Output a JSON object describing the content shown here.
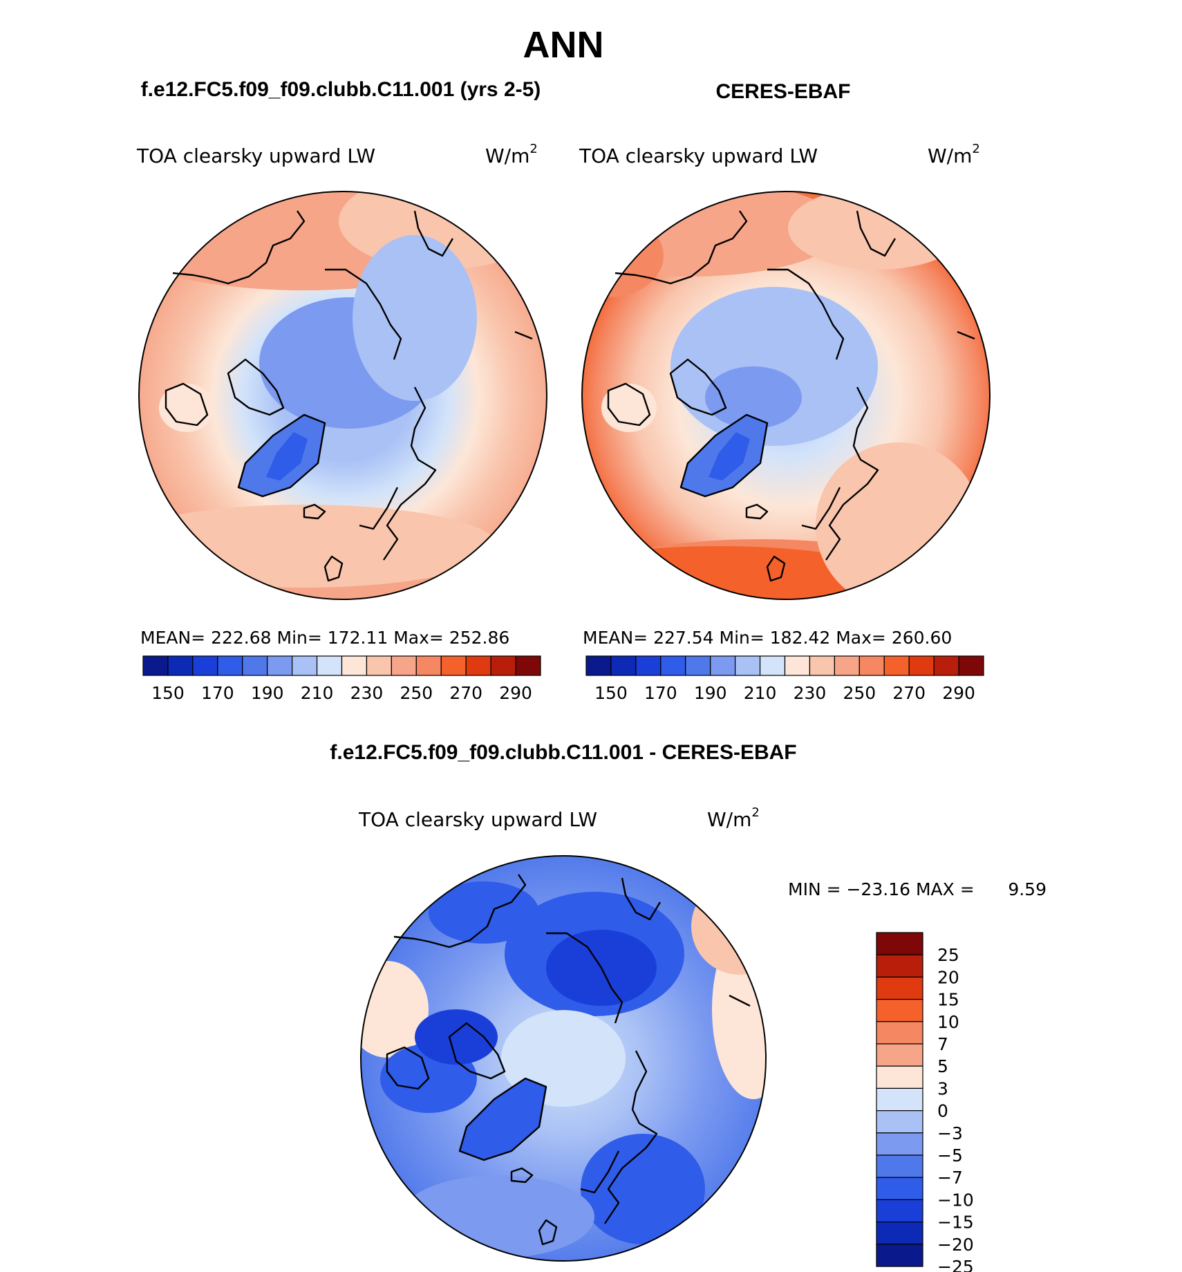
{
  "title": "ANN",
  "panels": [
    {
      "name": "model",
      "case_title": "f.e12.FC5.f09_f09.clubb.C11.001 (yrs 2-5)",
      "variable": "TOA clearsky upward LW",
      "units": "W/m",
      "units_sup": "2",
      "stats": {
        "mean": "222.68",
        "min": "172.11",
        "max": "252.86"
      },
      "stats_label_mean": "MEAN=",
      "stats_label_min": "Min=",
      "stats_label_max": "Max=",
      "palette": [
        "#0a1a8c",
        "#0c2ab5",
        "#1a3fd9",
        "#2f5ce8",
        "#4f78ea",
        "#7b9af0",
        "#a9c1f5",
        "#d2e3fa",
        "#fde6d7",
        "#f9c5ad",
        "#f6a588",
        "#f58762",
        "#f4612b",
        "#e03a10",
        "#b81e0a",
        "#7e0808"
      ],
      "colorbar_labels": [
        "150",
        "170",
        "190",
        "210",
        "230",
        "250",
        "270",
        "290"
      ]
    },
    {
      "name": "obs",
      "case_title": "CERES-EBAF",
      "variable": "TOA clearsky upward LW",
      "units": "W/m",
      "units_sup": "2",
      "stats": {
        "mean": "227.54",
        "min": "182.42",
        "max": "260.60"
      },
      "stats_label_mean": "MEAN=",
      "stats_label_min": "Min=",
      "stats_label_max": "Max=",
      "palette": [
        "#0a1a8c",
        "#0c2ab5",
        "#1a3fd9",
        "#2f5ce8",
        "#4f78ea",
        "#7b9af0",
        "#a9c1f5",
        "#d2e3fa",
        "#fde6d7",
        "#f9c5ad",
        "#f6a588",
        "#f58762",
        "#f4612b",
        "#e03a10",
        "#b81e0a",
        "#7e0808"
      ],
      "colorbar_labels": [
        "150",
        "170",
        "190",
        "210",
        "230",
        "250",
        "270",
        "290"
      ]
    }
  ],
  "difference": {
    "title": "f.e12.FC5.f09_f09.clubb.C11.001 - CERES-EBAF",
    "variable": "TOA clearsky upward LW",
    "units": "W/m",
    "units_sup": "2",
    "minmax_label": "MIN = −23.16 MAX =",
    "max_value": "9.59",
    "palette": [
      "#7e0808",
      "#b81e0a",
      "#e03a10",
      "#f4612b",
      "#f58762",
      "#f6a588",
      "#fde6d7",
      "#d2e3fa",
      "#a9c1f5",
      "#7b9af0",
      "#4f78ea",
      "#2f5ce8",
      "#1a3fd9",
      "#0c2ab5",
      "#0a1a8c"
    ],
    "colorbar_labels": [
      "25",
      "20",
      "15",
      "10",
      "7",
      "5",
      "3",
      "0",
      "−3",
      "−5",
      "−7",
      "−10",
      "−15",
      "−20",
      "−25"
    ]
  }
}
